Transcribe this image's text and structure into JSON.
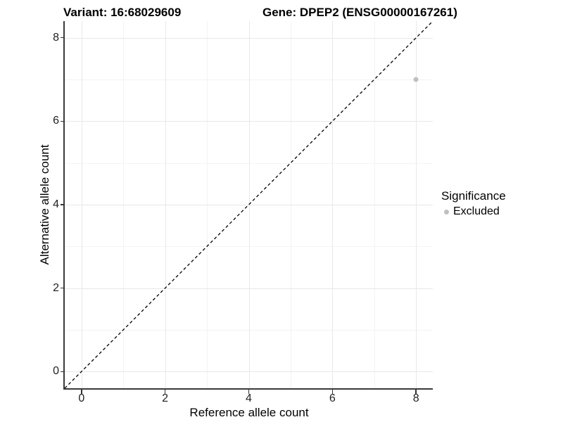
{
  "titles": {
    "variant": "Variant: 16:68029609",
    "gene": "Gene: DPEP2 (ENSG00000167261)"
  },
  "chart_data": {
    "type": "scatter",
    "title": "Variant: 16:68029609   Gene: DPEP2 (ENSG00000167261)",
    "xlabel": "Reference allele count",
    "ylabel": "Alternative allele count",
    "xlim": [
      -0.4,
      8.4
    ],
    "ylim": [
      -0.4,
      8.4
    ],
    "x_ticks": [
      0,
      2,
      4,
      6,
      8
    ],
    "y_ticks": [
      0,
      2,
      4,
      6,
      8
    ],
    "x_minor_ticks": [
      1,
      3,
      5,
      7
    ],
    "y_minor_ticks": [
      1,
      3,
      5,
      7
    ],
    "x_tick_labels": [
      "0",
      "2",
      "4",
      "6",
      "8"
    ],
    "y_tick_labels": [
      "0",
      "2",
      "4",
      "6",
      "8"
    ],
    "grid": true,
    "series": [
      {
        "name": "Excluded",
        "color": "#c0c0c0",
        "points": [
          {
            "x": 8,
            "y": 7
          }
        ]
      }
    ],
    "reference_line": {
      "type": "identity",
      "slope": 1,
      "intercept": 0,
      "style": "dashed",
      "color": "#000000"
    },
    "legend": {
      "title": "Significance",
      "position": "right",
      "items": [
        {
          "label": "Excluded",
          "color": "#c0c0c0"
        }
      ]
    }
  },
  "colors": {
    "grid_major": "#e8e8e8",
    "grid_minor": "#f3f3f3",
    "axis_line": "#3a3a3a",
    "point": "#c0c0c0",
    "background": "#ffffff"
  }
}
